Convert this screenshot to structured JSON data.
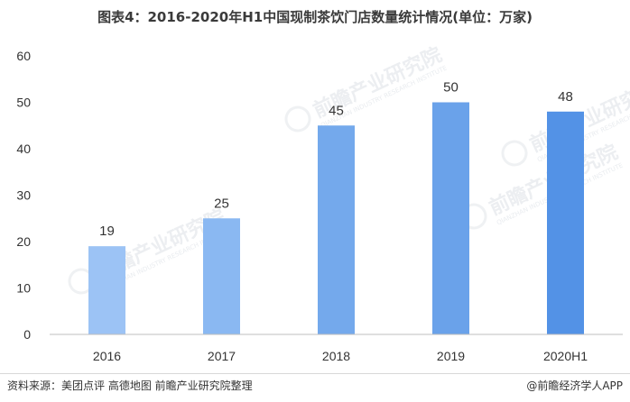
{
  "title": "图表4：2016-2020年H1中国现制茶饮门店数量统计情况(单位：万家)",
  "chart_data": {
    "type": "bar",
    "title": "图表4：2016-2020年H1中国现制茶饮门店数量统计情况(单位：万家)",
    "categories": [
      "2016",
      "2017",
      "2018",
      "2019",
      "2020H1"
    ],
    "values": [
      19,
      25,
      45,
      50,
      48
    ],
    "xlabel": "",
    "ylabel": "",
    "ylim": [
      0,
      60
    ],
    "yticks": [
      0,
      10,
      20,
      30,
      40,
      50,
      60
    ],
    "grid": false,
    "legend": "none",
    "bar_colors": [
      "#9cc3f5",
      "#8ab8f2",
      "#74a9ec",
      "#6aa2ea",
      "#5392e6"
    ],
    "data_labels": [
      "19",
      "25",
      "45",
      "50",
      "48"
    ]
  },
  "watermark": {
    "brand": "前瞻产业研究院",
    "subtitle": "QIANZHAN INDUSTRY RESEARCH INSTITUTE"
  },
  "footer": {
    "source": "资料来源：美团点评 高德地图 前瞻产业研究院整理",
    "brand": "@前瞻经济学人APP"
  }
}
